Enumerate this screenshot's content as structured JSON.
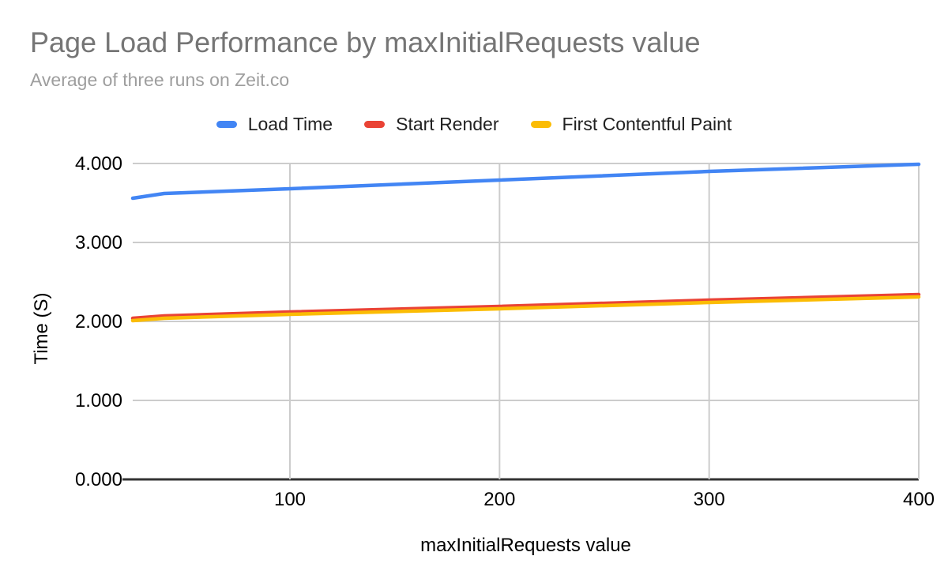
{
  "chart_data": {
    "type": "line",
    "title": "Page Load Performance by maxInitialRequests value",
    "subtitle": "Average of three runs on Zeit.co",
    "xlabel": "maxInitialRequests value",
    "ylabel": "Time (S)",
    "x": [
      25,
      40,
      100,
      200,
      300,
      400
    ],
    "series": [
      {
        "name": "Load Time",
        "color": "#4285F4",
        "values": [
          3.56,
          3.62,
          3.68,
          3.79,
          3.9,
          3.99
        ]
      },
      {
        "name": "Start Render",
        "color": "#EA4335",
        "values": [
          2.04,
          2.07,
          2.12,
          2.19,
          2.27,
          2.34
        ]
      },
      {
        "name": "First Contentful Paint",
        "color": "#FBBC04",
        "values": [
          2.01,
          2.04,
          2.09,
          2.16,
          2.24,
          2.31
        ]
      }
    ],
    "xlim": [
      25,
      400
    ],
    "ylim": [
      0,
      4
    ],
    "x_ticks": [
      "100",
      "200",
      "300",
      "400"
    ],
    "y_ticks": [
      "0.000",
      "1.000",
      "2.000",
      "3.000",
      "4.000"
    ],
    "grid": true,
    "legend_position": "top",
    "colors": {
      "grid": "#cccccc",
      "axis_line": "#333333",
      "tick_label": "#000000",
      "title": "#757575",
      "subtitle": "#9e9e9e",
      "legend_text": "#212121",
      "background": "#ffffff"
    }
  }
}
